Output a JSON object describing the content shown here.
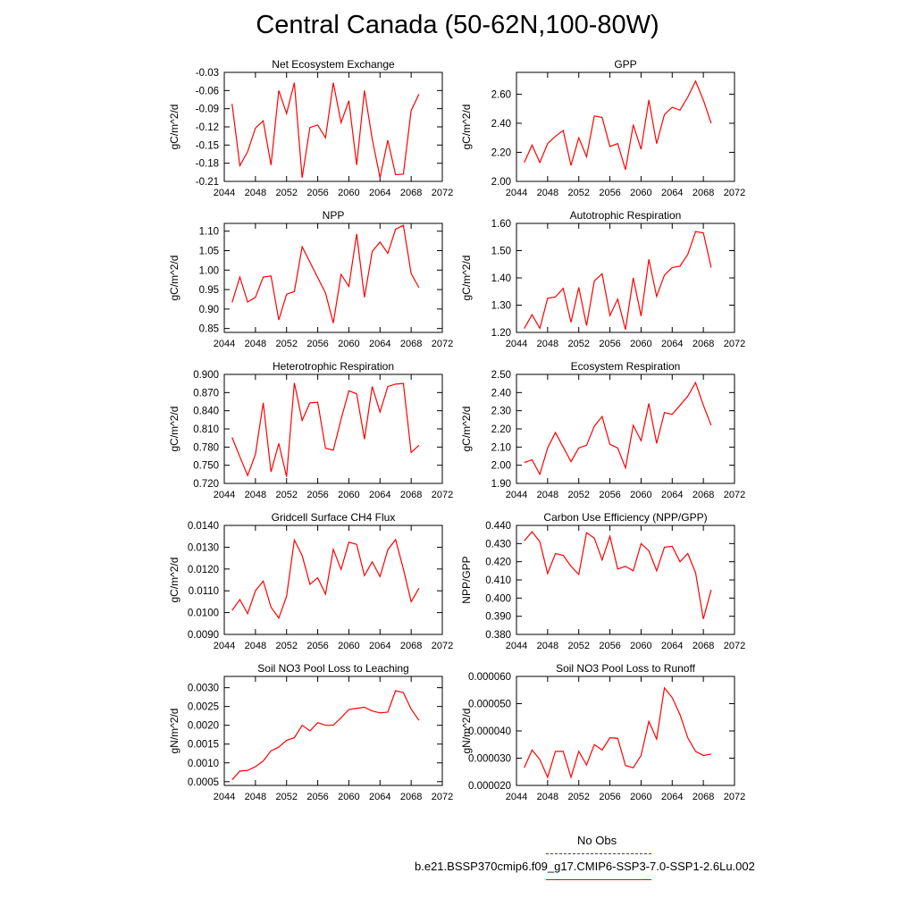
{
  "page": {
    "title": "Central Canada (50-62N,100-80W)"
  },
  "legend": {
    "entries": [
      {
        "label": "No Obs",
        "color": "#3333cc",
        "dash": "dashed"
      },
      {
        "label": "b.e21.BSSP370cmip6.f09_g17.CMIP6-SSP3-7.0-SSP1-2.6Lu.002",
        "color": "#ff0000",
        "dash": "solid"
      }
    ]
  },
  "colors": {
    "series": "#ff0000",
    "no_obs": "#3333cc"
  },
  "chart_data": [
    {
      "type": "line",
      "title": "Net Ecosystem Exchange",
      "xlabel": "",
      "ylabel": "gC/m^2/d",
      "xlim": [
        2044,
        2072
      ],
      "ylim": [
        -0.21,
        -0.03
      ],
      "xticks": [
        2044,
        2048,
        2052,
        2056,
        2060,
        2064,
        2068,
        2072
      ],
      "xtick_labels": [
        "2044",
        "2048",
        "2052",
        "2056",
        "2060",
        "2064",
        "2068",
        "2072"
      ],
      "yticks": [
        -0.21,
        -0.18,
        -0.15,
        -0.12,
        -0.09,
        -0.06,
        -0.03
      ],
      "ytick_labels": [
        "-0.21",
        "-0.18",
        "-0.15",
        "-0.12",
        "-0.09",
        "-0.06",
        "-0.03"
      ],
      "series": [
        {
          "color": "#ff0000",
          "x": [
            2045,
            2046,
            2047,
            2048,
            2049,
            2050,
            2051,
            2052,
            2053,
            2054,
            2055,
            2056,
            2057,
            2058,
            2059,
            2060,
            2061,
            2062,
            2063,
            2064,
            2065,
            2066,
            2067,
            2068,
            2069
          ],
          "y": [
            -0.082,
            -0.184,
            -0.161,
            -0.122,
            -0.11,
            -0.183,
            -0.06,
            -0.098,
            -0.047,
            -0.204,
            -0.121,
            -0.117,
            -0.138,
            -0.047,
            -0.113,
            -0.077,
            -0.183,
            -0.06,
            -0.14,
            -0.204,
            -0.142,
            -0.199,
            -0.198,
            -0.093,
            -0.066
          ]
        }
      ]
    },
    {
      "type": "line",
      "title": "GPP",
      "xlabel": "",
      "ylabel": "gC/m^2/d",
      "xlim": [
        2044,
        2072
      ],
      "ylim": [
        2.0,
        2.75
      ],
      "xticks": [
        2044,
        2048,
        2052,
        2056,
        2060,
        2064,
        2068,
        2072
      ],
      "xtick_labels": [
        "2044",
        "2048",
        "2052",
        "2056",
        "2060",
        "2064",
        "2068",
        "2072"
      ],
      "yticks": [
        2.0,
        2.2,
        2.4,
        2.6
      ],
      "ytick_labels": [
        "2.00",
        "2.20",
        "2.40",
        "2.60"
      ],
      "series": [
        {
          "color": "#ff0000",
          "x": [
            2045,
            2046,
            2047,
            2048,
            2049,
            2050,
            2051,
            2052,
            2053,
            2054,
            2055,
            2056,
            2057,
            2058,
            2059,
            2060,
            2061,
            2062,
            2063,
            2064,
            2065,
            2066,
            2067,
            2068,
            2069
          ],
          "y": [
            2.13,
            2.25,
            2.13,
            2.26,
            2.31,
            2.35,
            2.11,
            2.3,
            2.17,
            2.45,
            2.44,
            2.24,
            2.26,
            2.08,
            2.39,
            2.22,
            2.56,
            2.26,
            2.46,
            2.51,
            2.49,
            2.58,
            2.69,
            2.56,
            2.4
          ]
        }
      ]
    },
    {
      "type": "line",
      "title": "NPP",
      "xlabel": "",
      "ylabel": "gC/m^2/d",
      "xlim": [
        2044,
        2072
      ],
      "ylim": [
        0.84,
        1.12
      ],
      "xticks": [
        2044,
        2048,
        2052,
        2056,
        2060,
        2064,
        2068,
        2072
      ],
      "xtick_labels": [
        "2044",
        "2048",
        "2052",
        "2056",
        "2060",
        "2064",
        "2068",
        "2072"
      ],
      "yticks": [
        0.85,
        0.9,
        0.95,
        1.0,
        1.05,
        1.1
      ],
      "ytick_labels": [
        "0.85",
        "0.90",
        "0.95",
        "1.00",
        "1.05",
        "1.10"
      ],
      "series": [
        {
          "color": "#ff0000",
          "x": [
            2045,
            2046,
            2047,
            2048,
            2049,
            2050,
            2051,
            2052,
            2053,
            2054,
            2057,
            2058,
            2059,
            2060,
            2061,
            2062,
            2063,
            2064,
            2065,
            2066,
            2067,
            2068,
            2069
          ],
          "y": [
            0.917,
            0.982,
            0.918,
            0.93,
            0.982,
            0.985,
            0.872,
            0.938,
            0.945,
            1.06,
            0.941,
            0.864,
            0.989,
            0.958,
            1.093,
            0.93,
            1.048,
            1.072,
            1.043,
            1.105,
            1.115,
            0.991,
            0.955
          ]
        }
      ]
    },
    {
      "type": "line",
      "title": "Autotrophic Respiration",
      "xlabel": "",
      "ylabel": "gC/m^2/d",
      "xlim": [
        2044,
        2072
      ],
      "ylim": [
        1.2,
        1.6
      ],
      "xticks": [
        2044,
        2048,
        2052,
        2056,
        2060,
        2064,
        2068,
        2072
      ],
      "xtick_labels": [
        "2044",
        "2048",
        "2052",
        "2056",
        "2060",
        "2064",
        "2068",
        "2072"
      ],
      "yticks": [
        1.2,
        1.3,
        1.4,
        1.5,
        1.6
      ],
      "ytick_labels": [
        "1.20",
        "1.30",
        "1.40",
        "1.50",
        "1.60"
      ],
      "series": [
        {
          "color": "#ff0000",
          "x": [
            2045,
            2046,
            2047,
            2048,
            2049,
            2050,
            2051,
            2052,
            2053,
            2054,
            2055,
            2056,
            2057,
            2058,
            2059,
            2060,
            2061,
            2062,
            2063,
            2064,
            2065,
            2066,
            2067,
            2068,
            2069
          ],
          "y": [
            1.214,
            1.265,
            1.215,
            1.325,
            1.33,
            1.362,
            1.237,
            1.365,
            1.225,
            1.389,
            1.415,
            1.262,
            1.322,
            1.21,
            1.4,
            1.26,
            1.468,
            1.332,
            1.41,
            1.438,
            1.443,
            1.486,
            1.57,
            1.565,
            1.438
          ]
        }
      ]
    },
    {
      "type": "line",
      "title": "Heterotrophic Respiration",
      "xlabel": "",
      "ylabel": "gC/m^2/d",
      "xlim": [
        2044,
        2072
      ],
      "ylim": [
        0.72,
        0.9
      ],
      "xticks": [
        2044,
        2048,
        2052,
        2056,
        2060,
        2064,
        2068,
        2072
      ],
      "xtick_labels": [
        "2044",
        "2048",
        "2052",
        "2056",
        "2060",
        "2064",
        "2068",
        "2072"
      ],
      "yticks": [
        0.72,
        0.75,
        0.78,
        0.81,
        0.84,
        0.87,
        0.9
      ],
      "ytick_labels": [
        "0.720",
        "0.750",
        "0.780",
        "0.810",
        "0.840",
        "0.870",
        "0.900"
      ],
      "series": [
        {
          "color": "#ff0000",
          "x": [
            2045,
            2046,
            2047,
            2048,
            2049,
            2050,
            2051,
            2052,
            2053,
            2054,
            2055,
            2056,
            2057,
            2058,
            2059,
            2060,
            2061,
            2062,
            2063,
            2064,
            2065,
            2066,
            2067,
            2068,
            2069
          ],
          "y": [
            0.796,
            0.764,
            0.733,
            0.768,
            0.853,
            0.739,
            0.786,
            0.731,
            0.886,
            0.824,
            0.853,
            0.854,
            0.778,
            0.775,
            0.826,
            0.873,
            0.868,
            0.793,
            0.88,
            0.838,
            0.88,
            0.884,
            0.885,
            0.771,
            0.783
          ]
        }
      ]
    },
    {
      "type": "line",
      "title": "Ecosystem Respiration",
      "xlabel": "",
      "ylabel": "gC/m^2/d",
      "xlim": [
        2044,
        2072
      ],
      "ylim": [
        1.9,
        2.5
      ],
      "xticks": [
        2044,
        2048,
        2052,
        2056,
        2060,
        2064,
        2068,
        2072
      ],
      "xtick_labels": [
        "2044",
        "2048",
        "2052",
        "2056",
        "2060",
        "2064",
        "2068",
        "2072"
      ],
      "yticks": [
        1.9,
        2.0,
        2.1,
        2.2,
        2.3,
        2.4,
        2.5
      ],
      "ytick_labels": [
        "1.90",
        "2.00",
        "2.10",
        "2.20",
        "2.30",
        "2.40",
        "2.50"
      ],
      "series": [
        {
          "color": "#ff0000",
          "x": [
            2045,
            2046,
            2047,
            2048,
            2049,
            2050,
            2051,
            2052,
            2053,
            2054,
            2055,
            2056,
            2057,
            2058,
            2059,
            2060,
            2061,
            2062,
            2063,
            2064,
            2065,
            2066,
            2067,
            2068,
            2069
          ],
          "y": [
            2.015,
            2.03,
            1.95,
            2.095,
            2.18,
            2.1,
            2.02,
            2.095,
            2.11,
            2.215,
            2.268,
            2.115,
            2.095,
            1.985,
            2.22,
            2.135,
            2.34,
            2.12,
            2.29,
            2.28,
            2.33,
            2.38,
            2.455,
            2.33,
            2.22
          ]
        }
      ]
    },
    {
      "type": "line",
      "title": "Gridcell Surface CH4 Flux",
      "xlabel": "",
      "ylabel": "gC/m^2/d",
      "xlim": [
        2044,
        2072
      ],
      "ylim": [
        0.009,
        0.014
      ],
      "xticks": [
        2044,
        2048,
        2052,
        2056,
        2060,
        2064,
        2068,
        2072
      ],
      "xtick_labels": [
        "2044",
        "2048",
        "2052",
        "2056",
        "2060",
        "2064",
        "2068",
        "2072"
      ],
      "yticks": [
        0.009,
        0.01,
        0.011,
        0.012,
        0.013,
        0.014
      ],
      "ytick_labels": [
        "0.0090",
        "0.0100",
        "0.0110",
        "0.0120",
        "0.0130",
        "0.0140"
      ],
      "series": [
        {
          "color": "#ff0000",
          "x": [
            2045,
            2046,
            2047,
            2048,
            2049,
            2050,
            2051,
            2052,
            2053,
            2054,
            2055,
            2056,
            2057,
            2058,
            2059,
            2060,
            2061,
            2062,
            2063,
            2064,
            2065,
            2066,
            2067,
            2068,
            2069
          ],
          "y": [
            0.0101,
            0.0106,
            0.00995,
            0.011,
            0.01145,
            0.01025,
            0.00975,
            0.01075,
            0.01333,
            0.01262,
            0.0113,
            0.0116,
            0.01085,
            0.0129,
            0.01198,
            0.01323,
            0.01313,
            0.0117,
            0.01233,
            0.01165,
            0.01288,
            0.01335,
            0.012,
            0.0105,
            0.01112
          ]
        }
      ]
    },
    {
      "type": "line",
      "title": "Carbon Use Efficiency (NPP/GPP)",
      "xlabel": "",
      "ylabel": "NPP/GPP",
      "xlim": [
        2044,
        2072
      ],
      "ylim": [
        0.38,
        0.44
      ],
      "xticks": [
        2044,
        2048,
        2052,
        2056,
        2060,
        2064,
        2068,
        2072
      ],
      "xtick_labels": [
        "2044",
        "2048",
        "2052",
        "2056",
        "2060",
        "2064",
        "2068",
        "2072"
      ],
      "yticks": [
        0.38,
        0.39,
        0.4,
        0.41,
        0.42,
        0.43,
        0.44
      ],
      "ytick_labels": [
        "0.380",
        "0.390",
        "0.400",
        "0.410",
        "0.420",
        "0.430",
        "0.440"
      ],
      "series": [
        {
          "color": "#ff0000",
          "x": [
            2045,
            2046,
            2047,
            2048,
            2049,
            2050,
            2051,
            2052,
            2053,
            2054,
            2055,
            2056,
            2057,
            2058,
            2059,
            2060,
            2061,
            2062,
            2063,
            2064,
            2065,
            2066,
            2067,
            2068,
            2069
          ],
          "y": [
            0.4315,
            0.4365,
            0.431,
            0.4135,
            0.4245,
            0.4235,
            0.4175,
            0.413,
            0.436,
            0.433,
            0.421,
            0.434,
            0.416,
            0.4175,
            0.415,
            0.43,
            0.426,
            0.415,
            0.428,
            0.4285,
            0.42,
            0.4245,
            0.414,
            0.3885,
            0.4045
          ]
        }
      ]
    },
    {
      "type": "line",
      "title": "Soil NO3 Pool Loss to Leaching",
      "xlabel": "",
      "ylabel": "gN/m^2/d",
      "xlim": [
        2044,
        2072
      ],
      "ylim": [
        0.0004,
        0.0033
      ],
      "xticks": [
        2044,
        2048,
        2052,
        2056,
        2060,
        2064,
        2068,
        2072
      ],
      "xtick_labels": [
        "2044",
        "2048",
        "2052",
        "2056",
        "2060",
        "2064",
        "2068",
        "2072"
      ],
      "yticks": [
        0.0005,
        0.001,
        0.0015,
        0.002,
        0.0025,
        0.003
      ],
      "ytick_labels": [
        "0.0005",
        "0.0010",
        "0.0015",
        "0.0020",
        "0.0025",
        "0.0030"
      ],
      "series": [
        {
          "color": "#ff0000",
          "x": [
            2045,
            2046,
            2047,
            2048,
            2049,
            2050,
            2051,
            2052,
            2053,
            2054,
            2055,
            2056,
            2057,
            2058,
            2059,
            2060,
            2061,
            2062,
            2063,
            2064,
            2065,
            2066,
            2067,
            2068,
            2069
          ],
          "y": [
            0.00055,
            0.00078,
            0.0008,
            0.0009,
            0.00105,
            0.00132,
            0.00142,
            0.0016,
            0.00167,
            0.002,
            0.00185,
            0.00207,
            0.002,
            0.002,
            0.0022,
            0.00242,
            0.00245,
            0.00248,
            0.00238,
            0.00233,
            0.00235,
            0.00292,
            0.00287,
            0.00243,
            0.00213
          ]
        }
      ]
    },
    {
      "type": "line",
      "title": "Soil NO3 Pool Loss to Runoff",
      "xlabel": "",
      "ylabel": "gN/m^2/d",
      "xlim": [
        2044,
        2072
      ],
      "ylim": [
        2e-05,
        6e-05
      ],
      "xticks": [
        2044,
        2048,
        2052,
        2056,
        2060,
        2064,
        2068,
        2072
      ],
      "xtick_labels": [
        "2044",
        "2048",
        "2052",
        "2056",
        "2060",
        "2064",
        "2068",
        "2072"
      ],
      "yticks": [
        2e-05,
        3e-05,
        4e-05,
        5e-05,
        6e-05
      ],
      "ytick_labels": [
        "0.000020",
        "0.000030",
        "0.000040",
        "0.000050",
        "0.000060"
      ],
      "series": [
        {
          "color": "#ff0000",
          "x": [
            2045,
            2046,
            2047,
            2048,
            2049,
            2050,
            2051,
            2052,
            2053,
            2054,
            2055,
            2056,
            2057,
            2058,
            2059,
            2060,
            2061,
            2062,
            2063,
            2064,
            2065,
            2066,
            2067,
            2068,
            2069
          ],
          "y": [
            2.65e-05,
            3.3e-05,
            2.95e-05,
            2.3e-05,
            3.25e-05,
            3.25e-05,
            2.3e-05,
            3.25e-05,
            2.75e-05,
            3.5e-05,
            3.3e-05,
            3.75e-05,
            3.73e-05,
            2.73e-05,
            2.65e-05,
            3.1e-05,
            4.35e-05,
            3.7e-05,
            5.58e-05,
            5.22e-05,
            4.6e-05,
            3.75e-05,
            3.25e-05,
            3.1e-05,
            3.15e-05
          ]
        }
      ]
    }
  ]
}
